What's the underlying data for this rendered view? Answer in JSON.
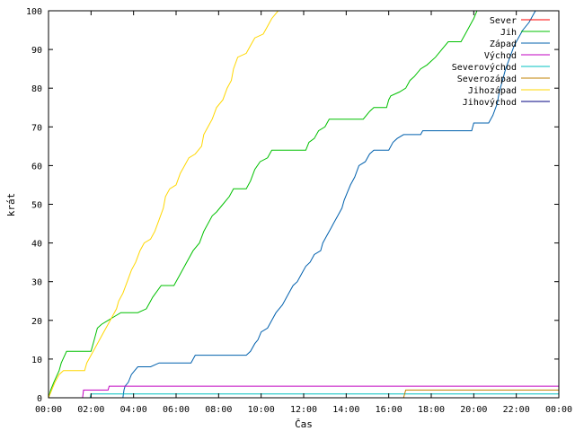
{
  "chart_data": {
    "type": "line",
    "title": "",
    "xlabel": "Čas",
    "ylabel": "krát",
    "xlim": [
      0,
      24
    ],
    "ylim": [
      0,
      100
    ],
    "x_ticks": [
      "00:00",
      "02:00",
      "04:00",
      "06:00",
      "08:00",
      "10:00",
      "12:00",
      "14:00",
      "16:00",
      "18:00",
      "20:00",
      "22:00",
      "00:00"
    ],
    "y_ticks": [
      0,
      10,
      20,
      30,
      40,
      50,
      60,
      70,
      80,
      90,
      100
    ],
    "grid": false,
    "legend_position": "top-right",
    "series": [
      {
        "name": "Sever",
        "color": "#ff0000",
        "points": [
          [
            0,
            0
          ],
          [
            24,
            0
          ]
        ]
      },
      {
        "name": "Jih",
        "color": "#00c000",
        "points": [
          [
            0,
            0
          ],
          [
            0.1,
            2
          ],
          [
            0.25,
            4
          ],
          [
            0.5,
            7
          ],
          [
            0.6,
            9
          ],
          [
            0.85,
            12
          ],
          [
            2.0,
            12
          ],
          [
            2.15,
            15
          ],
          [
            2.3,
            18
          ],
          [
            2.5,
            19
          ],
          [
            2.8,
            20
          ],
          [
            3.1,
            21
          ],
          [
            3.4,
            22
          ],
          [
            4.2,
            22
          ],
          [
            4.6,
            23
          ],
          [
            4.9,
            26
          ],
          [
            5.3,
            29
          ],
          [
            5.9,
            29
          ],
          [
            6.2,
            32
          ],
          [
            6.5,
            35
          ],
          [
            6.8,
            38
          ],
          [
            7.1,
            40
          ],
          [
            7.3,
            43
          ],
          [
            7.7,
            47
          ],
          [
            7.9,
            48
          ],
          [
            8.2,
            50
          ],
          [
            8.5,
            52
          ],
          [
            8.7,
            54
          ],
          [
            9.3,
            54
          ],
          [
            9.5,
            56
          ],
          [
            9.7,
            59
          ],
          [
            9.95,
            61
          ],
          [
            10.3,
            62
          ],
          [
            10.5,
            64
          ],
          [
            12.1,
            64
          ],
          [
            12.25,
            66
          ],
          [
            12.5,
            67
          ],
          [
            12.7,
            69
          ],
          [
            13.0,
            70
          ],
          [
            13.2,
            72
          ],
          [
            14.8,
            72
          ],
          [
            15.1,
            74
          ],
          [
            15.3,
            75
          ],
          [
            15.9,
            75
          ],
          [
            16.0,
            77
          ],
          [
            16.1,
            78
          ],
          [
            16.5,
            79
          ],
          [
            16.8,
            80
          ],
          [
            17.0,
            82
          ],
          [
            17.2,
            83
          ],
          [
            17.5,
            85
          ],
          [
            17.8,
            86
          ],
          [
            18.2,
            88
          ],
          [
            18.5,
            90
          ],
          [
            18.8,
            92
          ],
          [
            19.4,
            92
          ],
          [
            19.6,
            94
          ],
          [
            19.8,
            96
          ],
          [
            20.0,
            98
          ],
          [
            20.15,
            100
          ]
        ]
      },
      {
        "name": "Západ",
        "color": "#0060ad",
        "points": [
          [
            0,
            0
          ],
          [
            3.5,
            0
          ],
          [
            3.55,
            2
          ],
          [
            3.6,
            3
          ],
          [
            3.75,
            4
          ],
          [
            3.9,
            6
          ],
          [
            4.05,
            7
          ],
          [
            4.2,
            8
          ],
          [
            4.8,
            8
          ],
          [
            5.2,
            9
          ],
          [
            6.7,
            9
          ],
          [
            6.9,
            11
          ],
          [
            9.3,
            11
          ],
          [
            9.5,
            12
          ],
          [
            9.7,
            14
          ],
          [
            9.85,
            15
          ],
          [
            10.0,
            17
          ],
          [
            10.3,
            18
          ],
          [
            10.5,
            20
          ],
          [
            10.7,
            22
          ],
          [
            11.0,
            24
          ],
          [
            11.1,
            25
          ],
          [
            11.3,
            27
          ],
          [
            11.5,
            29
          ],
          [
            11.7,
            30
          ],
          [
            11.9,
            32
          ],
          [
            12.1,
            34
          ],
          [
            12.3,
            35
          ],
          [
            12.5,
            37
          ],
          [
            12.8,
            38
          ],
          [
            12.9,
            40
          ],
          [
            13.1,
            42
          ],
          [
            13.3,
            44
          ],
          [
            13.4,
            45
          ],
          [
            13.6,
            47
          ],
          [
            13.8,
            49
          ],
          [
            13.9,
            51
          ],
          [
            14.05,
            53
          ],
          [
            14.2,
            55
          ],
          [
            14.4,
            57
          ],
          [
            14.6,
            60
          ],
          [
            14.9,
            61
          ],
          [
            15.1,
            63
          ],
          [
            15.3,
            64
          ],
          [
            16.0,
            64
          ],
          [
            16.2,
            66
          ],
          [
            16.4,
            67
          ],
          [
            16.7,
            68
          ],
          [
            17.5,
            68
          ],
          [
            17.6,
            69
          ],
          [
            19.9,
            69
          ],
          [
            20.0,
            71
          ],
          [
            20.7,
            71
          ],
          [
            20.9,
            73
          ],
          [
            21.1,
            76
          ],
          [
            21.2,
            79
          ],
          [
            21.35,
            82
          ],
          [
            21.5,
            85
          ],
          [
            21.7,
            88
          ],
          [
            21.9,
            91
          ],
          [
            22.1,
            93
          ],
          [
            22.3,
            95
          ],
          [
            22.6,
            97
          ],
          [
            22.8,
            99
          ],
          [
            22.9,
            100
          ]
        ]
      },
      {
        "name": "Východ",
        "color": "#c000c0",
        "points": [
          [
            0,
            0
          ],
          [
            1.6,
            0
          ],
          [
            1.65,
            2
          ],
          [
            2.8,
            2
          ],
          [
            2.85,
            3
          ],
          [
            24,
            3
          ]
        ]
      },
      {
        "name": "Severovýchod",
        "color": "#00c0c0",
        "points": [
          [
            0,
            0
          ],
          [
            1.95,
            0
          ],
          [
            2.0,
            1
          ],
          [
            24,
            1
          ]
        ]
      },
      {
        "name": "Severozápad",
        "color": "#c08000",
        "points": [
          [
            0,
            0
          ],
          [
            16.7,
            0
          ],
          [
            16.8,
            2
          ],
          [
            24,
            2
          ]
        ]
      },
      {
        "name": "Jihozápad",
        "color": "#ffd700",
        "points": [
          [
            0,
            0
          ],
          [
            0.15,
            2
          ],
          [
            0.3,
            4
          ],
          [
            0.5,
            6
          ],
          [
            0.7,
            7
          ],
          [
            1.7,
            7
          ],
          [
            1.8,
            9
          ],
          [
            2.0,
            11
          ],
          [
            2.2,
            13
          ],
          [
            2.4,
            15
          ],
          [
            2.6,
            17
          ],
          [
            2.8,
            19
          ],
          [
            3.0,
            21
          ],
          [
            3.2,
            23
          ],
          [
            3.3,
            25
          ],
          [
            3.5,
            27
          ],
          [
            3.7,
            30
          ],
          [
            3.9,
            33
          ],
          [
            4.1,
            35
          ],
          [
            4.3,
            38
          ],
          [
            4.5,
            40
          ],
          [
            4.8,
            41
          ],
          [
            5.0,
            43
          ],
          [
            5.2,
            46
          ],
          [
            5.4,
            49
          ],
          [
            5.5,
            52
          ],
          [
            5.7,
            54
          ],
          [
            6.0,
            55
          ],
          [
            6.2,
            58
          ],
          [
            6.4,
            60
          ],
          [
            6.6,
            62
          ],
          [
            6.9,
            63
          ],
          [
            7.2,
            65
          ],
          [
            7.3,
            68
          ],
          [
            7.5,
            70
          ],
          [
            7.7,
            72
          ],
          [
            7.9,
            75
          ],
          [
            8.2,
            77
          ],
          [
            8.4,
            80
          ],
          [
            8.6,
            82
          ],
          [
            8.7,
            85
          ],
          [
            8.9,
            88
          ],
          [
            9.3,
            89
          ],
          [
            9.5,
            91
          ],
          [
            9.7,
            93
          ],
          [
            10.1,
            94
          ],
          [
            10.3,
            96
          ],
          [
            10.5,
            98
          ],
          [
            10.8,
            100
          ]
        ]
      },
      {
        "name": "Jihovýchod",
        "color": "#000080",
        "points": [
          [
            0,
            0
          ],
          [
            24,
            0
          ]
        ]
      }
    ]
  }
}
